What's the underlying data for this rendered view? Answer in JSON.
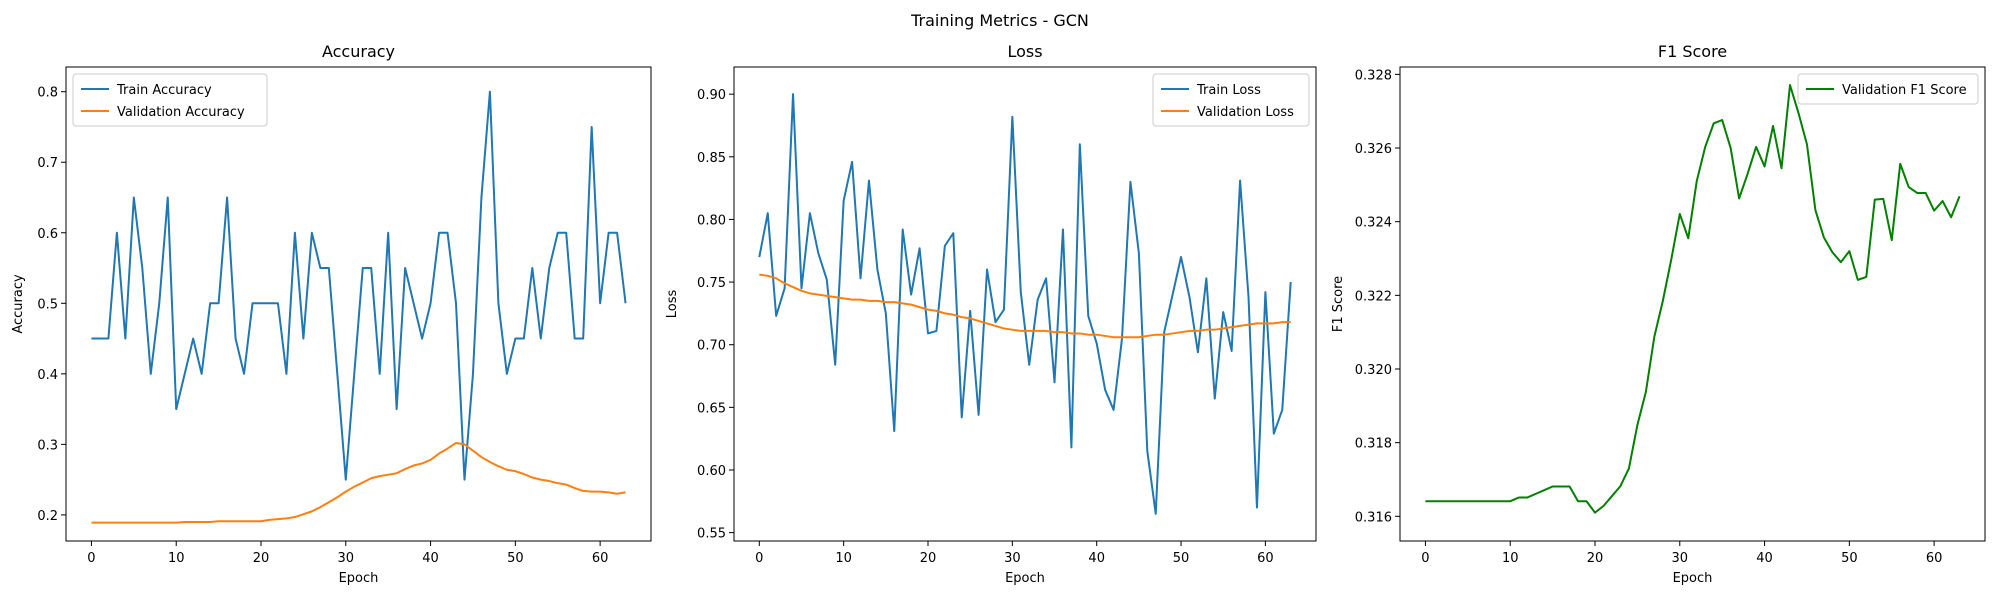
{
  "figure": {
    "suptitle": "Training Metrics - GCN"
  },
  "colors": {
    "blue": "#1f77b4",
    "orange": "#ff7f0e",
    "green": "#008000"
  },
  "chart_data": [
    {
      "type": "line",
      "title": "Accuracy",
      "xlabel": "Epoch",
      "ylabel": "Accuracy",
      "xlim": [
        -3,
        66
      ],
      "ylim": [
        0.163,
        0.835
      ],
      "xticks": [
        0,
        10,
        20,
        30,
        40,
        50,
        60
      ],
      "yticks": [
        0.2,
        0.3,
        0.4,
        0.5,
        0.6,
        0.7,
        0.8
      ],
      "ytick_labels": [
        "0.2",
        "0.3",
        "0.4",
        "0.5",
        "0.6",
        "0.7",
        "0.8"
      ],
      "grid": false,
      "legend_position": "upper-left",
      "series": [
        {
          "name": "Train Accuracy",
          "color": "#1f77b4",
          "values": [
            0.45,
            0.45,
            0.45,
            0.6,
            0.45,
            0.65,
            0.55,
            0.4,
            0.5,
            0.65,
            0.35,
            0.4,
            0.45,
            0.4,
            0.5,
            0.5,
            0.65,
            0.45,
            0.4,
            0.5,
            0.5,
            0.5,
            0.5,
            0.4,
            0.6,
            0.45,
            0.6,
            0.55,
            0.55,
            0.4,
            0.25,
            0.4,
            0.55,
            0.55,
            0.4,
            0.6,
            0.35,
            0.55,
            0.5,
            0.45,
            0.5,
            0.6,
            0.6,
            0.5,
            0.25,
            0.4,
            0.65,
            0.8,
            0.5,
            0.4,
            0.45,
            0.45,
            0.55,
            0.45,
            0.55,
            0.6,
            0.6,
            0.45,
            0.45,
            0.75,
            0.5,
            0.6,
            0.6,
            0.5
          ]
        },
        {
          "name": "Validation Accuracy",
          "color": "#ff7f0e",
          "values": [
            0.189,
            0.189,
            0.189,
            0.189,
            0.189,
            0.189,
            0.189,
            0.189,
            0.189,
            0.189,
            0.189,
            0.19,
            0.19,
            0.19,
            0.19,
            0.191,
            0.191,
            0.191,
            0.191,
            0.191,
            0.191,
            0.193,
            0.194,
            0.195,
            0.197,
            0.201,
            0.205,
            0.211,
            0.218,
            0.225,
            0.233,
            0.24,
            0.246,
            0.252,
            0.255,
            0.257,
            0.259,
            0.265,
            0.27,
            0.273,
            0.278,
            0.287,
            0.294,
            0.302,
            0.3,
            0.291,
            0.282,
            0.275,
            0.269,
            0.264,
            0.262,
            0.258,
            0.253,
            0.25,
            0.248,
            0.245,
            0.243,
            0.238,
            0.234,
            0.233,
            0.233,
            0.232,
            0.23,
            0.232
          ]
        }
      ]
    },
    {
      "type": "line",
      "title": "Loss",
      "xlabel": "Epoch",
      "ylabel": "Loss",
      "xlim": [
        -3,
        66
      ],
      "ylim": [
        0.5433,
        0.9217
      ],
      "xticks": [
        0,
        10,
        20,
        30,
        40,
        50,
        60
      ],
      "yticks": [
        0.55,
        0.6,
        0.65,
        0.7,
        0.75,
        0.8,
        0.85,
        0.9
      ],
      "ytick_labels": [
        "0.55",
        "0.60",
        "0.65",
        "0.70",
        "0.75",
        "0.80",
        "0.85",
        "0.90"
      ],
      "grid": false,
      "legend_position": "upper-right",
      "series": [
        {
          "name": "Train Loss",
          "color": "#1f77b4",
          "values": [
            0.77,
            0.805,
            0.723,
            0.745,
            0.9,
            0.745,
            0.805,
            0.773,
            0.752,
            0.684,
            0.815,
            0.846,
            0.753,
            0.831,
            0.76,
            0.725,
            0.631,
            0.792,
            0.74,
            0.777,
            0.709,
            0.711,
            0.779,
            0.789,
            0.642,
            0.727,
            0.644,
            0.76,
            0.718,
            0.728,
            0.882,
            0.742,
            0.684,
            0.736,
            0.753,
            0.67,
            0.792,
            0.618,
            0.86,
            0.723,
            0.701,
            0.664,
            0.648,
            0.705,
            0.83,
            0.773,
            0.615,
            0.565,
            0.71,
            0.74,
            0.77,
            0.738,
            0.694,
            0.753,
            0.657,
            0.726,
            0.695,
            0.831,
            0.738,
            0.57,
            0.742,
            0.629,
            0.648,
            0.75
          ]
        },
        {
          "name": "Validation Loss",
          "color": "#ff7f0e",
          "values": [
            0.756,
            0.755,
            0.753,
            0.749,
            0.746,
            0.743,
            0.741,
            0.74,
            0.739,
            0.738,
            0.737,
            0.736,
            0.736,
            0.735,
            0.735,
            0.734,
            0.734,
            0.733,
            0.732,
            0.73,
            0.728,
            0.727,
            0.725,
            0.724,
            0.722,
            0.721,
            0.719,
            0.717,
            0.715,
            0.713,
            0.712,
            0.711,
            0.711,
            0.711,
            0.711,
            0.71,
            0.71,
            0.709,
            0.709,
            0.708,
            0.708,
            0.707,
            0.706,
            0.706,
            0.706,
            0.706,
            0.707,
            0.708,
            0.708,
            0.709,
            0.71,
            0.711,
            0.711,
            0.712,
            0.712,
            0.713,
            0.714,
            0.715,
            0.716,
            0.717,
            0.717,
            0.717,
            0.718,
            0.718
          ]
        }
      ]
    },
    {
      "type": "line",
      "title": "F1 Score",
      "xlabel": "Epoch",
      "ylabel": "F1 Score",
      "xlim": [
        -3,
        66
      ],
      "ylim": [
        0.31533,
        0.3282
      ],
      "xticks": [
        0,
        10,
        20,
        30,
        40,
        50,
        60
      ],
      "yticks": [
        0.316,
        0.318,
        0.32,
        0.322,
        0.324,
        0.326,
        0.328
      ],
      "ytick_labels": [
        "0.316",
        "0.318",
        "0.320",
        "0.322",
        "0.324",
        "0.326",
        "0.328"
      ],
      "grid": false,
      "legend_position": "upper-right",
      "series": [
        {
          "name": "Validation F1 Score",
          "color": "#008000",
          "values": [
            0.31641,
            0.31641,
            0.31641,
            0.31641,
            0.31641,
            0.31641,
            0.31641,
            0.31641,
            0.31641,
            0.31641,
            0.31641,
            0.31651,
            0.31651,
            0.31661,
            0.31671,
            0.31681,
            0.31681,
            0.31681,
            0.31641,
            0.31641,
            0.3161,
            0.31628,
            0.31655,
            0.31682,
            0.3173,
            0.31848,
            0.31938,
            0.32088,
            0.32185,
            0.32298,
            0.32421,
            0.32355,
            0.3251,
            0.32603,
            0.32667,
            0.32676,
            0.326,
            0.32463,
            0.3253,
            0.32603,
            0.3255,
            0.3266,
            0.32545,
            0.32771,
            0.32695,
            0.3261,
            0.32431,
            0.32357,
            0.32317,
            0.3229,
            0.3232,
            0.32242,
            0.3225,
            0.3246,
            0.32462,
            0.3235,
            0.32557,
            0.32494,
            0.32478,
            0.32478,
            0.3243,
            0.32456,
            0.32412,
            0.32469
          ]
        }
      ]
    }
  ]
}
